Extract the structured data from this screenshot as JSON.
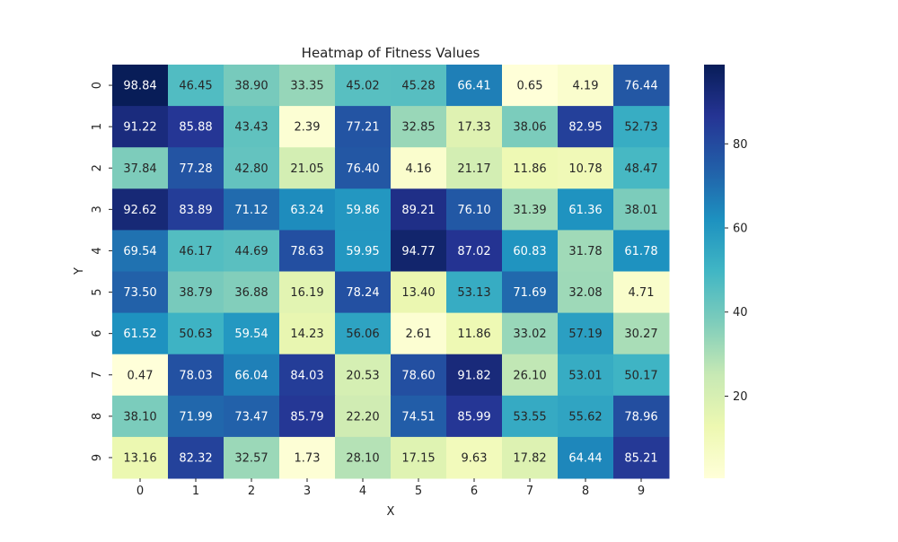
{
  "chart_data": {
    "type": "heatmap",
    "title": "Heatmap of Fitness Values",
    "xlabel": "X",
    "ylabel": "Y",
    "x_categories": [
      "0",
      "1",
      "2",
      "3",
      "4",
      "5",
      "6",
      "7",
      "8",
      "9"
    ],
    "y_categories": [
      "0",
      "1",
      "2",
      "3",
      "4",
      "5",
      "6",
      "7",
      "8",
      "9"
    ],
    "values": [
      [
        98.84,
        46.45,
        38.9,
        33.35,
        45.02,
        45.28,
        66.41,
        0.65,
        4.19,
        76.44
      ],
      [
        91.22,
        85.88,
        43.43,
        2.39,
        77.21,
        32.85,
        17.33,
        38.06,
        82.95,
        52.73
      ],
      [
        37.84,
        77.28,
        42.8,
        21.05,
        76.4,
        4.16,
        21.17,
        11.86,
        10.78,
        48.47
      ],
      [
        92.62,
        83.89,
        71.12,
        63.24,
        59.86,
        89.21,
        76.1,
        31.39,
        61.36,
        38.01
      ],
      [
        69.54,
        46.17,
        44.69,
        78.63,
        59.95,
        94.77,
        87.02,
        60.83,
        31.78,
        61.78
      ],
      [
        73.5,
        38.79,
        36.88,
        16.19,
        78.24,
        13.4,
        53.13,
        71.69,
        32.08,
        4.71
      ],
      [
        61.52,
        50.63,
        59.54,
        14.23,
        56.06,
        2.61,
        11.86,
        33.02,
        57.19,
        30.27
      ],
      [
        0.47,
        78.03,
        66.04,
        84.03,
        20.53,
        78.6,
        91.82,
        26.1,
        53.01,
        50.17
      ],
      [
        38.1,
        71.99,
        73.47,
        85.79,
        22.2,
        74.51,
        85.99,
        53.55,
        55.62,
        78.96
      ],
      [
        13.16,
        82.32,
        32.57,
        1.73,
        28.1,
        17.15,
        9.63,
        17.82,
        64.44,
        85.21
      ]
    ],
    "value_format_decimals": 2,
    "colormap": "YlGnBu",
    "colormap_stops": [
      "#ffffd9",
      "#edf8b1",
      "#c7e9b4",
      "#7fcdbb",
      "#41b6c4",
      "#1d91c0",
      "#225ea8",
      "#253494",
      "#081d58"
    ],
    "colorbar": {
      "min": 0.47,
      "max": 98.84,
      "ticks": [
        20,
        40,
        60,
        80
      ]
    },
    "grid": false,
    "legend": "colorbar-right"
  }
}
